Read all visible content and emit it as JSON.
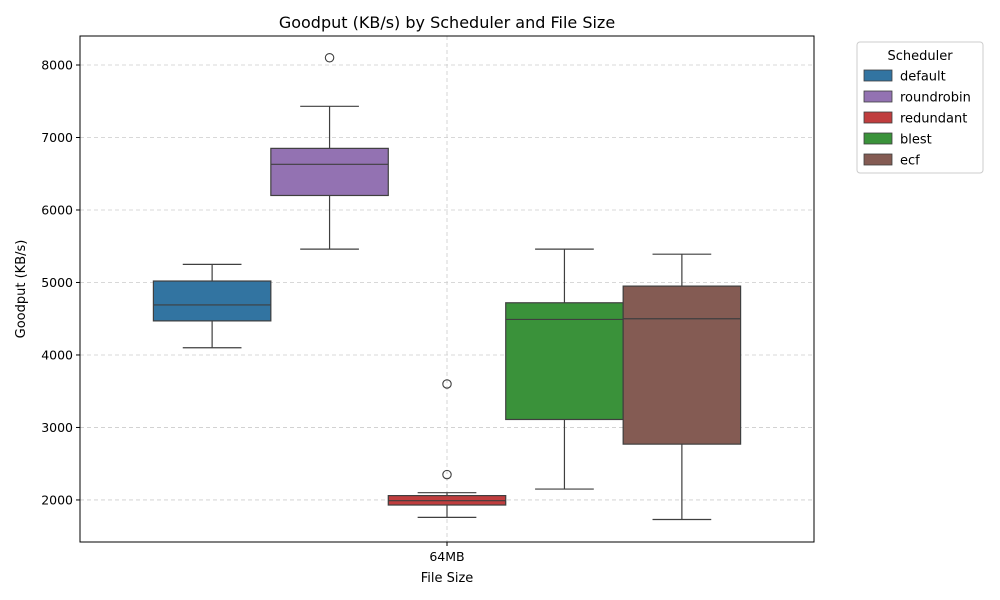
{
  "chart_data": {
    "type": "box",
    "title": "Goodput (KB/s) by Scheduler and File Size",
    "xlabel": "File Size",
    "ylabel": "Goodput (KB/s)",
    "categories": [
      "64MB"
    ],
    "ylim": [
      1420,
      8400
    ],
    "yticks": [
      2000,
      3000,
      4000,
      5000,
      6000,
      7000,
      8000
    ],
    "grid": true,
    "legend": {
      "title": "Scheduler",
      "placement": "outside-top-right"
    },
    "series": [
      {
        "name": "default",
        "color": "#3274a1",
        "whisker_low": 4100,
        "q1": 4470,
        "median": 4690,
        "q3": 5020,
        "whisker_high": 5250,
        "outliers": []
      },
      {
        "name": "roundrobin",
        "color": "#9372b2",
        "whisker_low": 5460,
        "q1": 6200,
        "median": 6630,
        "q3": 6850,
        "whisker_high": 7430,
        "outliers": [
          8100
        ]
      },
      {
        "name": "redundant",
        "color": "#c03d3e",
        "whisker_low": 1760,
        "q1": 1930,
        "median": 1990,
        "q3": 2060,
        "whisker_high": 2100,
        "outliers": [
          3600,
          2350
        ]
      },
      {
        "name": "blest",
        "color": "#3a923a",
        "whisker_low": 2150,
        "q1": 3110,
        "median": 4490,
        "q3": 4720,
        "whisker_high": 5460,
        "outliers": []
      },
      {
        "name": "ecf",
        "color": "#845b53",
        "whisker_low": 1730,
        "q1": 2770,
        "median": 4500,
        "q3": 4950,
        "whisker_high": 5390,
        "outliers": []
      }
    ]
  }
}
